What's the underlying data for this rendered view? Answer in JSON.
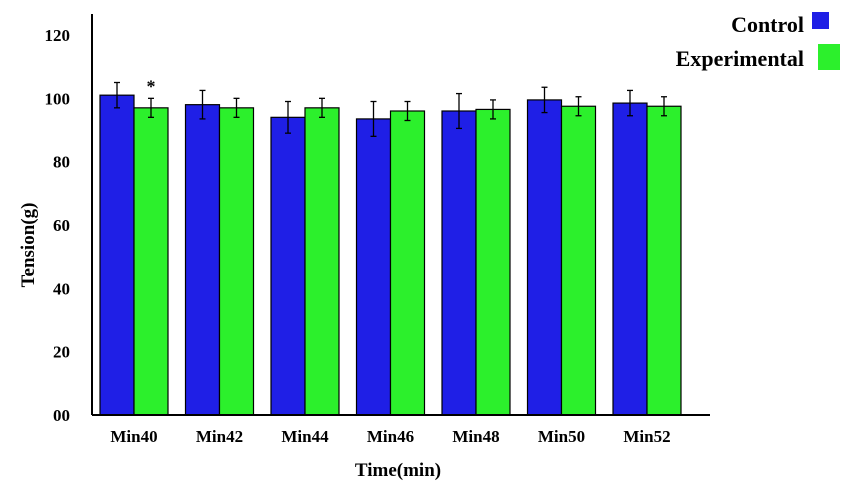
{
  "chart_data": {
    "type": "bar",
    "xlabel": "Time(min)",
    "ylabel": "Tension(g)",
    "categories": [
      "Min40",
      "Min42",
      "Min44",
      "Min46",
      "Min48",
      "Min50",
      "Min52"
    ],
    "ylim": [
      0,
      120
    ],
    "yticks": [
      "00",
      "20",
      "40",
      "60",
      "80",
      "100",
      "120"
    ],
    "grid": false,
    "legend_position": "top-right",
    "series": [
      {
        "name": "Control",
        "color": "#1f1fe6",
        "values": [
          101,
          98,
          94,
          93.5,
          96,
          99.5,
          98.5
        ],
        "errors": [
          4,
          4.5,
          5,
          5.5,
          5.5,
          4,
          4
        ]
      },
      {
        "name": "Experimental",
        "color": "#2cf02c",
        "values": [
          97,
          97,
          97,
          96,
          96.5,
          97.5,
          97.5
        ],
        "errors": [
          3,
          3,
          3,
          3,
          3,
          3,
          3
        ]
      }
    ],
    "annotations": [
      {
        "text": "*",
        "category": "Min40",
        "series": "Experimental"
      }
    ]
  }
}
